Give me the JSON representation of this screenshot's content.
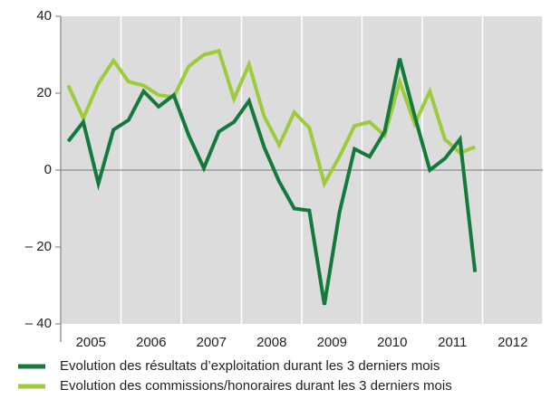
{
  "chart_data": {
    "type": "line",
    "categories": [
      "2005",
      "2006",
      "2007",
      "2008",
      "2009",
      "2010",
      "2011",
      "2012"
    ],
    "x": [
      2005.125,
      2005.375,
      2005.625,
      2005.875,
      2006.125,
      2006.375,
      2006.625,
      2006.875,
      2007.125,
      2007.375,
      2007.625,
      2007.875,
      2008.125,
      2008.375,
      2008.625,
      2008.875,
      2009.125,
      2009.375,
      2009.625,
      2009.875,
      2010.125,
      2010.375,
      2010.625,
      2010.875,
      2011.125,
      2011.375,
      2011.625,
      2011.875
    ],
    "series": [
      {
        "name": "Evolution des résultats d’exploitation durant les 3 derniers mois",
        "color": "#137a3c",
        "values": [
          7.5,
          12.5,
          -3.5,
          10.5,
          13,
          20.5,
          16.5,
          19.5,
          9,
          0.5,
          10,
          12.5,
          18,
          6,
          -3,
          -10,
          -10.5,
          -35,
          -11,
          5.5,
          3.5,
          10,
          29,
          14,
          0,
          3,
          8,
          -26.5
        ]
      },
      {
        "name": "Evolution des commissions/honoraires durant les 3 derniers mois",
        "color": "#9ccb3b",
        "values": [
          22,
          13.5,
          22.5,
          28.5,
          23,
          22,
          19.5,
          19,
          27,
          30,
          31,
          18.5,
          27.5,
          14,
          6.5,
          15,
          11,
          -3.5,
          3.5,
          11.5,
          12.5,
          9,
          23,
          12,
          20.5,
          8,
          4.5,
          6
        ]
      }
    ],
    "xlim": [
      2005,
      2013
    ],
    "xticks": [
      2005,
      2006,
      2007,
      2008,
      2009,
      2010,
      2011,
      2012,
      2013
    ],
    "ylim": [
      -40,
      40
    ],
    "yticks": [
      {
        "value": -40,
        "label": "– 40"
      },
      {
        "value": -20,
        "label": "– 20"
      },
      0,
      20,
      40
    ],
    "grid": true
  }
}
